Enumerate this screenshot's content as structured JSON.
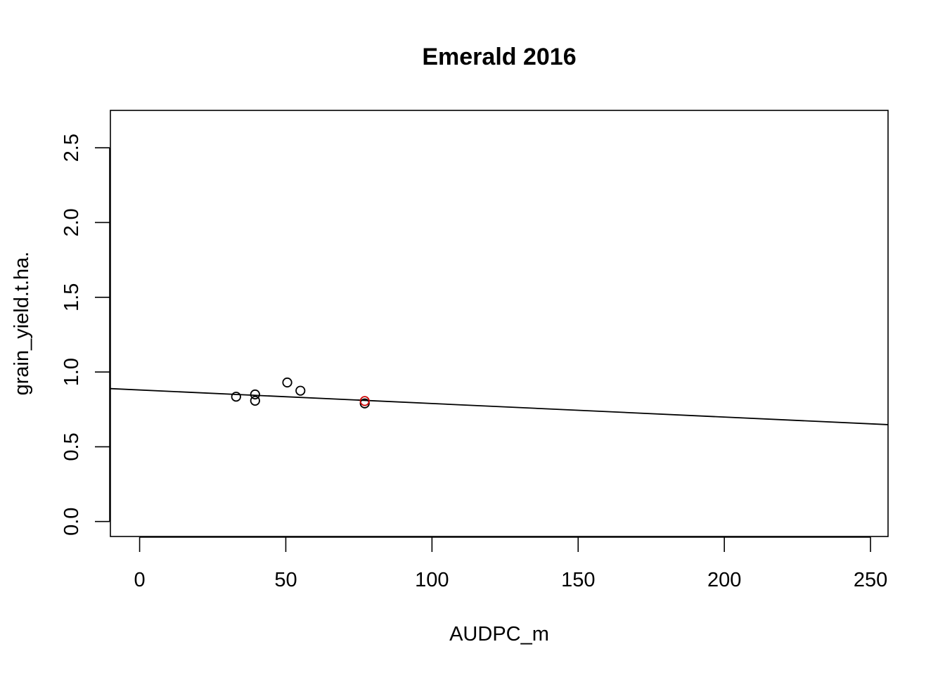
{
  "chart_data": {
    "type": "scatter",
    "title": "Emerald 2016",
    "xlabel": "AUDPC_m",
    "ylabel": "grain_yield.t.ha.",
    "xlim": [
      -10,
      256
    ],
    "ylim": [
      -0.1,
      2.75
    ],
    "xticks": [
      0,
      50,
      100,
      150,
      200,
      250
    ],
    "yticks": [
      0.0,
      0.5,
      1.0,
      1.5,
      2.0,
      2.5
    ],
    "xtick_labels": [
      "0",
      "50",
      "100",
      "150",
      "200",
      "250"
    ],
    "ytick_labels": [
      "0.0",
      "0.5",
      "1.0",
      "1.5",
      "2.0",
      "2.5"
    ],
    "grid": false,
    "legend": "none",
    "series": [
      {
        "points": [
          {
            "x": 33,
            "y": 0.835,
            "color": "#000000"
          },
          {
            "x": 39.5,
            "y": 0.85,
            "color": "#000000"
          },
          {
            "x": 39.5,
            "y": 0.808,
            "color": "#000000"
          },
          {
            "x": 50.5,
            "y": 0.93,
            "color": "#000000"
          },
          {
            "x": 55,
            "y": 0.875,
            "color": "#000000"
          },
          {
            "x": 77,
            "y": 0.79,
            "color": "#000000"
          },
          {
            "x": 77,
            "y": 0.806,
            "color": "#cc0000"
          }
        ]
      }
    ],
    "regression_line": {
      "intercept": 0.88,
      "slope": -0.000906,
      "color": "#000000"
    }
  }
}
